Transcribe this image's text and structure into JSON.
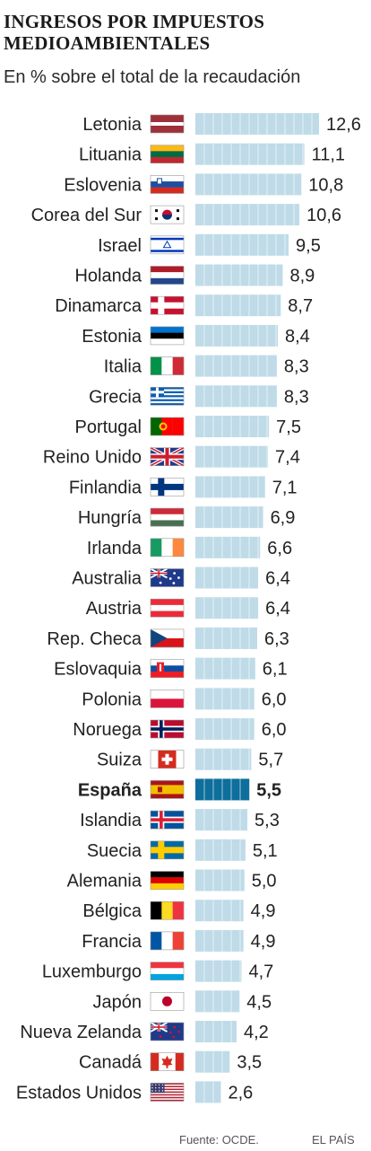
{
  "title": "INGRESOS POR IMPUESTOS MEDIOAMBIENTALES",
  "subtitle": "En % sobre el total de la recaudación",
  "source": "Fuente: OCDE.",
  "brand": "EL PAÍS",
  "colors": {
    "bar": "#bfdbe8",
    "bar_highlight": "#0e6e9c",
    "bar_divider": "#ffffff"
  },
  "chart_data": {
    "type": "bar",
    "orientation": "horizontal",
    "unit": "%",
    "highlight": "España",
    "categories": [
      "Letonia",
      "Lituania",
      "Eslovenia",
      "Corea del Sur",
      "Israel",
      "Holanda",
      "Dinamarca",
      "Estonia",
      "Italia",
      "Grecia",
      "Portugal",
      "Reino Unido",
      "Finlandia",
      "Hungría",
      "Irlanda",
      "Australia",
      "Austria",
      "Rep. Checa",
      "Eslovaquia",
      "Polonia",
      "Noruega",
      "Suiza",
      "España",
      "Islandia",
      "Suecia",
      "Alemania",
      "Bélgica",
      "Francia",
      "Luxemburgo",
      "Japón",
      "Nueva Zelanda",
      "Canadá",
      "Estados Unidos"
    ],
    "values": [
      12.6,
      11.1,
      10.8,
      10.6,
      9.5,
      8.9,
      8.7,
      8.4,
      8.3,
      8.3,
      7.5,
      7.4,
      7.1,
      6.9,
      6.6,
      6.4,
      6.4,
      6.3,
      6.1,
      6.0,
      6.0,
      5.7,
      5.5,
      5.3,
      5.1,
      5.0,
      4.9,
      4.9,
      4.7,
      4.5,
      4.2,
      3.5,
      2.6
    ],
    "value_labels": [
      "12,6",
      "11,1",
      "10,8",
      "10,6",
      "9,5",
      "8,9",
      "8,7",
      "8,4",
      "8,3",
      "8,3",
      "7,5",
      "7,4",
      "7,1",
      "6,9",
      "6,6",
      "6,4",
      "6,4",
      "6,3",
      "6,1",
      "6,0",
      "6,0",
      "5,7",
      "5,5",
      "5,3",
      "5,1",
      "5,0",
      "4,9",
      "4,9",
      "4,7",
      "4,5",
      "4,2",
      "3,5",
      "2,6"
    ],
    "flags": [
      "latvia-flag-icon",
      "lithuania-flag-icon",
      "slovenia-flag-icon",
      "south-korea-flag-icon",
      "israel-flag-icon",
      "netherlands-flag-icon",
      "denmark-flag-icon",
      "estonia-flag-icon",
      "italy-flag-icon",
      "greece-flag-icon",
      "portugal-flag-icon",
      "united-kingdom-flag-icon",
      "finland-flag-icon",
      "hungary-flag-icon",
      "ireland-flag-icon",
      "australia-flag-icon",
      "austria-flag-icon",
      "czech-republic-flag-icon",
      "slovakia-flag-icon",
      "poland-flag-icon",
      "norway-flag-icon",
      "switzerland-flag-icon",
      "spain-flag-icon",
      "iceland-flag-icon",
      "sweden-flag-icon",
      "germany-flag-icon",
      "belgium-flag-icon",
      "france-flag-icon",
      "luxembourg-flag-icon",
      "japan-flag-icon",
      "new-zealand-flag-icon",
      "canada-flag-icon",
      "usa-flag-icon"
    ],
    "xlim": [
      0,
      12.6
    ],
    "grid": false,
    "legend": "none"
  }
}
